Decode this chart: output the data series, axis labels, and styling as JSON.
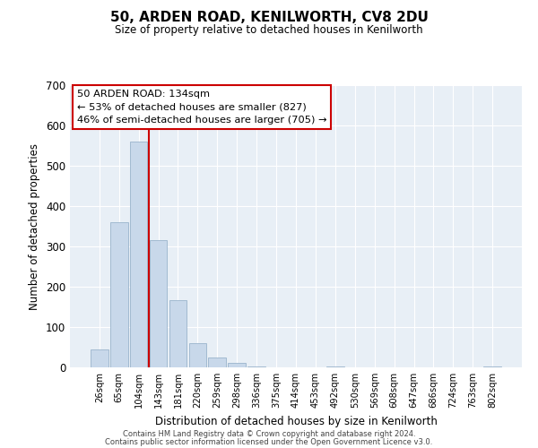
{
  "title": "50, ARDEN ROAD, KENILWORTH, CV8 2DU",
  "subtitle": "Size of property relative to detached houses in Kenilworth",
  "xlabel": "Distribution of detached houses by size in Kenilworth",
  "ylabel": "Number of detached properties",
  "bar_color": "#c8d8ea",
  "bar_edge_color": "#9ab4cc",
  "axes_bg_color": "#e8eff6",
  "fig_bg_color": "#ffffff",
  "grid_color": "#ffffff",
  "bin_labels": [
    "26sqm",
    "65sqm",
    "104sqm",
    "143sqm",
    "181sqm",
    "220sqm",
    "259sqm",
    "298sqm",
    "336sqm",
    "375sqm",
    "414sqm",
    "453sqm",
    "492sqm",
    "530sqm",
    "569sqm",
    "608sqm",
    "647sqm",
    "686sqm",
    "724sqm",
    "763sqm",
    "802sqm"
  ],
  "bar_heights": [
    45,
    360,
    560,
    315,
    167,
    60,
    25,
    12,
    3,
    0,
    0,
    0,
    2,
    0,
    0,
    0,
    0,
    0,
    0,
    0,
    3
  ],
  "vline_pos": 2.5,
  "vline_color": "#cc0000",
  "ylim": [
    0,
    700
  ],
  "yticks": [
    0,
    100,
    200,
    300,
    400,
    500,
    600,
    700
  ],
  "annotation_title": "50 ARDEN ROAD: 134sqm",
  "annotation_line1": "← 53% of detached houses are smaller (827)",
  "annotation_line2": "46% of semi-detached houses are larger (705) →",
  "annotation_box_color": "#ffffff",
  "annotation_box_edge": "#cc0000",
  "footer1": "Contains HM Land Registry data © Crown copyright and database right 2024.",
  "footer2": "Contains public sector information licensed under the Open Government Licence v3.0."
}
